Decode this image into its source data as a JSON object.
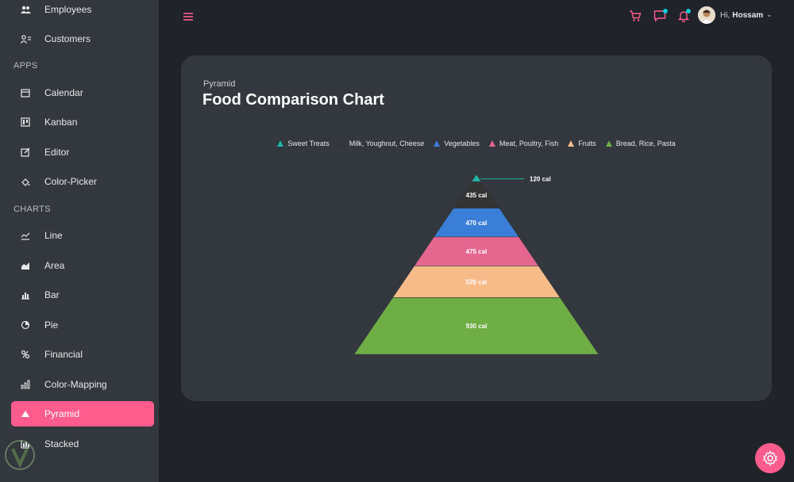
{
  "sidebar": {
    "items": [
      {
        "label": "Employees",
        "icon": "employees-icon"
      },
      {
        "label": "Customers",
        "icon": "customers-icon"
      }
    ],
    "sections": [
      {
        "title": "APPS",
        "items": [
          {
            "label": "Calendar",
            "icon": "calendar-icon"
          },
          {
            "label": "Kanban",
            "icon": "kanban-icon"
          },
          {
            "label": "Editor",
            "icon": "editor-icon"
          },
          {
            "label": "Color-Picker",
            "icon": "color-picker-icon"
          }
        ]
      },
      {
        "title": "CHARTS",
        "items": [
          {
            "label": "Line",
            "icon": "line-chart-icon"
          },
          {
            "label": "Area",
            "icon": "area-chart-icon"
          },
          {
            "label": "Bar",
            "icon": "bar-chart-icon"
          },
          {
            "label": "Pie",
            "icon": "pie-chart-icon"
          },
          {
            "label": "Financial",
            "icon": "financial-icon"
          },
          {
            "label": "Color-Mapping",
            "icon": "color-mapping-icon"
          },
          {
            "label": "Pyramid",
            "icon": "pyramid-icon",
            "active": true
          },
          {
            "label": "Stacked",
            "icon": "stacked-icon"
          }
        ]
      }
    ]
  },
  "header": {
    "greeting": "Hi,",
    "user_name": "Hossam"
  },
  "colors": {
    "accent": "#ff5c8e",
    "notification_dot": "#03c9d7"
  },
  "card": {
    "subtitle": "Pyramid",
    "title": "Food Comparison Chart"
  },
  "chart_data": {
    "type": "pyramid",
    "title": "Food Comparison Chart",
    "legend_position": "top",
    "series": [
      {
        "name": "Sweet Treats",
        "value": 120,
        "label": "120 cal",
        "color": "#1fb5a4"
      },
      {
        "name": "Milk, Youghnut, Cheese",
        "value": 435,
        "label": "435 cal",
        "color": "#333333"
      },
      {
        "name": "Vegetables",
        "value": 470,
        "label": "470 cal",
        "color": "#3a7ed8"
      },
      {
        "name": "Meat, Poultry, Fish",
        "value": 475,
        "label": "475 cal",
        "color": "#e5668f"
      },
      {
        "name": "Fruits",
        "value": 520,
        "label": "520 cal",
        "color": "#f7bb8a"
      },
      {
        "name": "Bread, Rice, Pasta",
        "value": 930,
        "label": "930 cal",
        "color": "#6fad45"
      }
    ]
  }
}
